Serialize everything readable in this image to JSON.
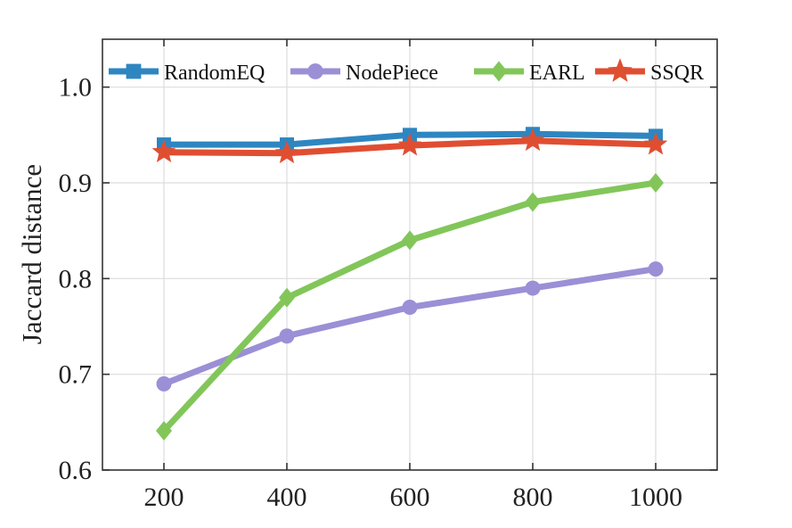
{
  "chart_data": {
    "type": "line",
    "title": "",
    "xlabel": "",
    "ylabel": "Jaccard distance",
    "x": [
      200,
      400,
      600,
      800,
      1000
    ],
    "xticks": [
      "200",
      "400",
      "600",
      "800",
      "1000"
    ],
    "yticks": [
      "0.6",
      "0.7",
      "0.8",
      "0.9",
      "1.0"
    ],
    "xlim": [
      100,
      1100
    ],
    "ylim": [
      0.6,
      1.05
    ],
    "grid": true,
    "legend_position": "top",
    "series": [
      {
        "name": "RandomEQ",
        "color": "#2E86C1",
        "marker": "square",
        "values": [
          0.94,
          0.94,
          0.95,
          0.951,
          0.949
        ]
      },
      {
        "name": "NodePiece",
        "color": "#9B8FD6",
        "marker": "circle",
        "values": [
          0.69,
          0.74,
          0.77,
          0.79,
          0.81
        ]
      },
      {
        "name": "EARL",
        "color": "#82C65A",
        "marker": "diamond",
        "values": [
          0.641,
          0.78,
          0.84,
          0.88,
          0.9
        ]
      },
      {
        "name": "SSQR",
        "color": "#E04E32",
        "marker": "star",
        "values": [
          0.932,
          0.931,
          0.939,
          0.944,
          0.94
        ]
      }
    ]
  }
}
